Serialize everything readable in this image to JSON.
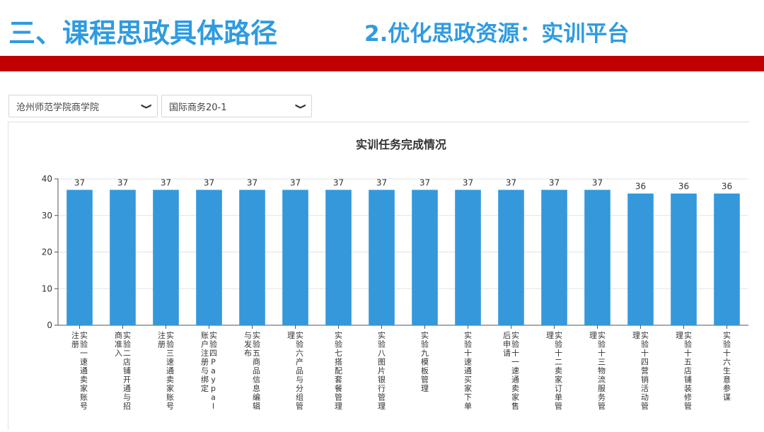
{
  "slide": {
    "title": "三、课程思政具体路径",
    "subtitle": "2.优化思政资源：实训平台"
  },
  "filters": {
    "school": "沧州师范学院商学院",
    "class": "国际商务20-1"
  },
  "icons": {
    "dropdown": "chevron-down-icon"
  },
  "colors": {
    "title": "#2f9be0",
    "banner": "#c00000",
    "bar": "#3498db"
  },
  "chart_data": {
    "type": "bar",
    "title": "实训任务完成情况",
    "categories": [
      "实验一速通卖家账号注册",
      "实验二店铺开通与招商准入",
      "实验三速通卖家账号注册",
      "实验四Paypal账户注册与绑定",
      "实验五商品信息编辑与发布",
      "实验六产品与分组管理",
      "实验七搭配套餐管理",
      "实验八图片银行管理",
      "实验九模板管理",
      "实验十速通买家下单",
      "实验十一速通卖家售后申请",
      "实验十二卖家订单管理",
      "实验十三物流服务管理",
      "实验十四营销活动管理",
      "实验十五店铺装修管理",
      "实验十六生意参谋"
    ],
    "values": [
      37,
      37,
      37,
      37,
      37,
      37,
      37,
      37,
      37,
      37,
      37,
      37,
      37,
      36,
      36,
      36
    ],
    "ylim": [
      0,
      40
    ],
    "yticks": [
      0,
      10,
      20,
      30,
      40
    ],
    "grid": true
  }
}
